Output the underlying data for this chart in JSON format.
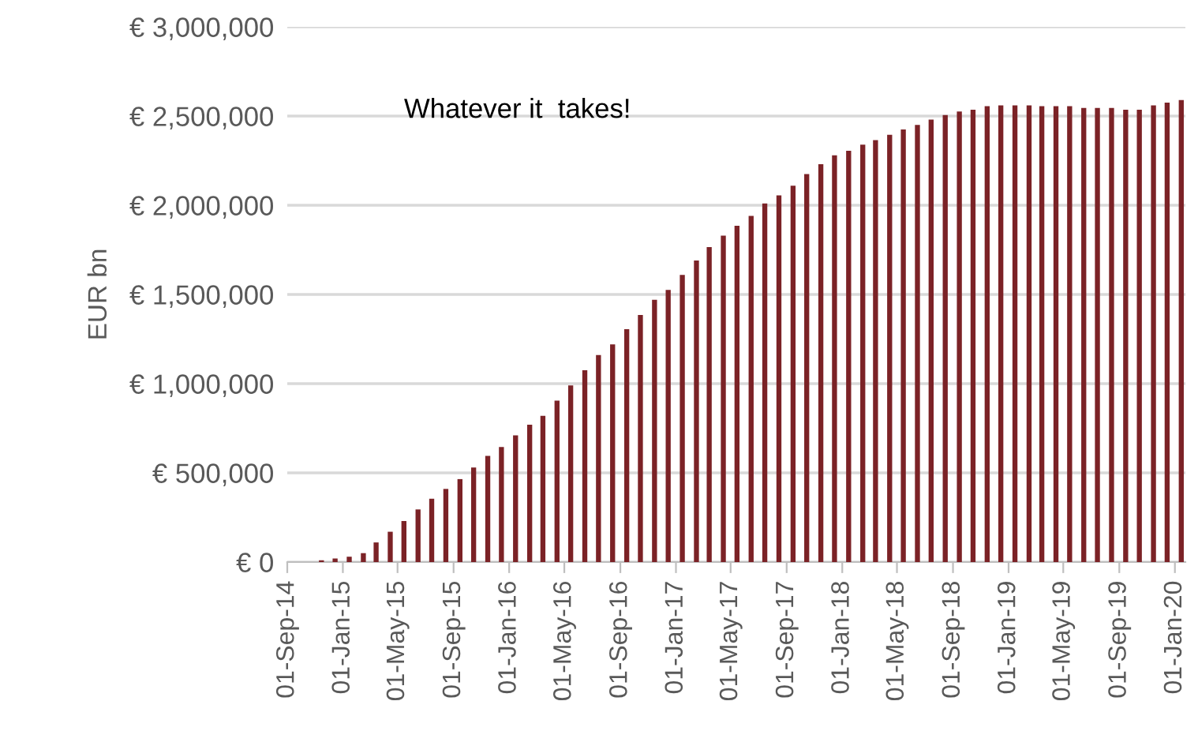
{
  "chart_data": {
    "type": "bar",
    "ylabel": "EUR bn",
    "annotations": [
      "Whatever it  takes!"
    ],
    "x": [
      "2014-11-15",
      "2014-12-15",
      "2015-01-15",
      "2015-02-15",
      "2015-03-15",
      "2015-04-15",
      "2015-05-15",
      "2015-06-15",
      "2015-07-15",
      "2015-08-15",
      "2015-09-15",
      "2015-10-15",
      "2015-11-15",
      "2015-12-15",
      "2016-01-15",
      "2016-02-15",
      "2016-03-15",
      "2016-04-15",
      "2016-05-15",
      "2016-06-15",
      "2016-07-15",
      "2016-08-15",
      "2016-09-15",
      "2016-10-15",
      "2016-11-15",
      "2016-12-15",
      "2017-01-15",
      "2017-02-15",
      "2017-03-15",
      "2017-04-15",
      "2017-05-15",
      "2017-06-15",
      "2017-07-15",
      "2017-08-15",
      "2017-09-15",
      "2017-10-15",
      "2017-11-15",
      "2017-12-15",
      "2018-01-15",
      "2018-02-15",
      "2018-03-15",
      "2018-04-15",
      "2018-05-15",
      "2018-06-15",
      "2018-07-15",
      "2018-08-15",
      "2018-09-15",
      "2018-10-15",
      "2018-11-15",
      "2018-12-15",
      "2019-01-15",
      "2019-02-15",
      "2019-03-15",
      "2019-04-15",
      "2019-05-15",
      "2019-06-15",
      "2019-07-15",
      "2019-08-15",
      "2019-09-15",
      "2019-10-15",
      "2019-11-15",
      "2019-12-15",
      "2020-01-15"
    ],
    "values": [
      10000,
      20000,
      30000,
      50000,
      110000,
      170000,
      230000,
      295000,
      355000,
      410000,
      465000,
      530000,
      595000,
      645000,
      710000,
      770000,
      820000,
      905000,
      990000,
      1075000,
      1160000,
      1220000,
      1305000,
      1385000,
      1470000,
      1525000,
      1610000,
      1690000,
      1765000,
      1830000,
      1885000,
      1940000,
      2010000,
      2055000,
      2110000,
      2175000,
      2230000,
      2280000,
      2305000,
      2340000,
      2365000,
      2395000,
      2425000,
      2450000,
      2480000,
      2505000,
      2525000,
      2535000,
      2555000,
      2560000,
      2560000,
      2560000,
      2555000,
      2555000,
      2555000,
      2545000,
      2545000,
      2545000,
      2535000,
      2535000,
      2560000,
      2575000,
      2590000
    ],
    "color": "#7b2226",
    "xlim": [
      "2014-09-01",
      "2020-01-24"
    ],
    "xticks": [
      {
        "value": "2014-09-01",
        "label": "01-Sep-14"
      },
      {
        "value": "2015-01-01",
        "label": "01-Jan-15"
      },
      {
        "value": "2015-05-01",
        "label": "01-May-15"
      },
      {
        "value": "2015-09-01",
        "label": "01-Sep-15"
      },
      {
        "value": "2016-01-01",
        "label": "01-Jan-16"
      },
      {
        "value": "2016-05-01",
        "label": "01-May-16"
      },
      {
        "value": "2016-09-01",
        "label": "01-Sep-16"
      },
      {
        "value": "2017-01-01",
        "label": "01-Jan-17"
      },
      {
        "value": "2017-05-01",
        "label": "01-May-17"
      },
      {
        "value": "2017-09-01",
        "label": "01-Sep-17"
      },
      {
        "value": "2018-01-01",
        "label": "01-Jan-18"
      },
      {
        "value": "2018-05-01",
        "label": "01-May-18"
      },
      {
        "value": "2018-09-01",
        "label": "01-Sep-18"
      },
      {
        "value": "2019-01-01",
        "label": "01-Jan-19"
      },
      {
        "value": "2019-05-01",
        "label": "01-May-19"
      },
      {
        "value": "2019-09-01",
        "label": "01-Sep-19"
      },
      {
        "value": "2020-01-01",
        "label": "01-Jan-20"
      }
    ],
    "ylim": [
      0,
      3000000
    ],
    "yticks": [
      {
        "value": 0,
        "label": "€ 0"
      },
      {
        "value": 500000,
        "label": "€ 500,000"
      },
      {
        "value": 1000000,
        "label": "€ 1,000,000"
      },
      {
        "value": 1500000,
        "label": "€ 1,500,000"
      },
      {
        "value": 2000000,
        "label": "€ 2,000,000"
      },
      {
        "value": 2500000,
        "label": "€ 2,500,000"
      },
      {
        "value": 3000000,
        "label": "€ 3,000,000"
      }
    ],
    "grid": "y",
    "legend": false
  }
}
